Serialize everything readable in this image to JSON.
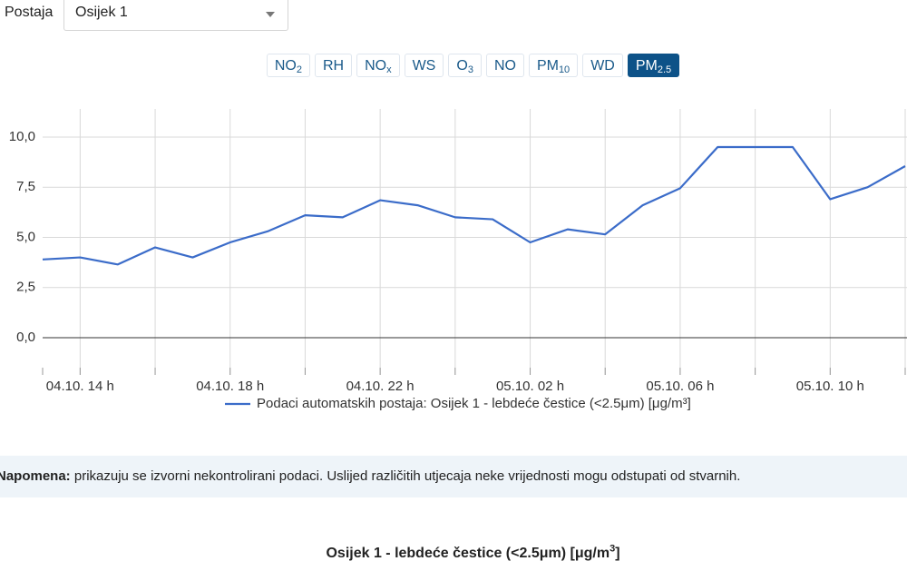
{
  "station": {
    "label": "Postaja",
    "selected": "Osijek 1"
  },
  "buttons": [
    {
      "base": "NO",
      "sub": "2"
    },
    {
      "base": "RH"
    },
    {
      "base": "NO",
      "sub": "x"
    },
    {
      "base": "WS"
    },
    {
      "base": "O",
      "sub": "3"
    },
    {
      "base": "NO"
    },
    {
      "base": "PM",
      "sub": "10"
    },
    {
      "base": "WD"
    },
    {
      "base": "PM",
      "sub": "2.5",
      "active": true
    }
  ],
  "chart_data": {
    "type": "line",
    "categories": [
      null,
      "04.10. 14 h",
      null,
      null,
      null,
      "04.10. 18 h",
      null,
      null,
      null,
      "04.10. 22 h",
      null,
      null,
      null,
      "05.10. 02 h",
      null,
      null,
      null,
      "05.10. 06 h",
      null,
      null,
      null,
      "05.10. 10 h",
      null,
      null
    ],
    "series": [
      {
        "name": "Podaci automatskih postaja: Osijek 1 - lebdeće čestice (<2.5μm) [μg/m³]",
        "color": "#3b6cc9",
        "values": [
          3.9,
          4.0,
          3.65,
          4.5,
          4.0,
          4.75,
          5.3,
          6.1,
          6.0,
          6.85,
          6.6,
          6.0,
          5.9,
          4.75,
          5.4,
          5.15,
          6.6,
          7.45,
          9.5,
          9.5,
          9.5,
          6.9,
          7.5,
          8.55
        ]
      }
    ],
    "ylim": [
      -1.9,
      11.4
    ],
    "yticks": [
      {
        "value": 0,
        "label": "0,0"
      },
      {
        "value": 2.5,
        "label": "2,5"
      },
      {
        "value": 5,
        "label": "5,0"
      },
      {
        "value": 7.5,
        "label": "7,5"
      },
      {
        "value": 10,
        "label": "10,0"
      }
    ],
    "grid": true
  },
  "note": {
    "label": "Napomena:",
    "text": "prikazuju se izvorni nekontrolirani podaci. Uslijed različitih utjecaja neke vrijednosti mogu odstupati od stvarnih."
  },
  "bottom_title": {
    "main": "Osijek 1 - lebdeće čestice (<2.5μm) [μg/m",
    "sup": "3",
    "end": "]"
  }
}
